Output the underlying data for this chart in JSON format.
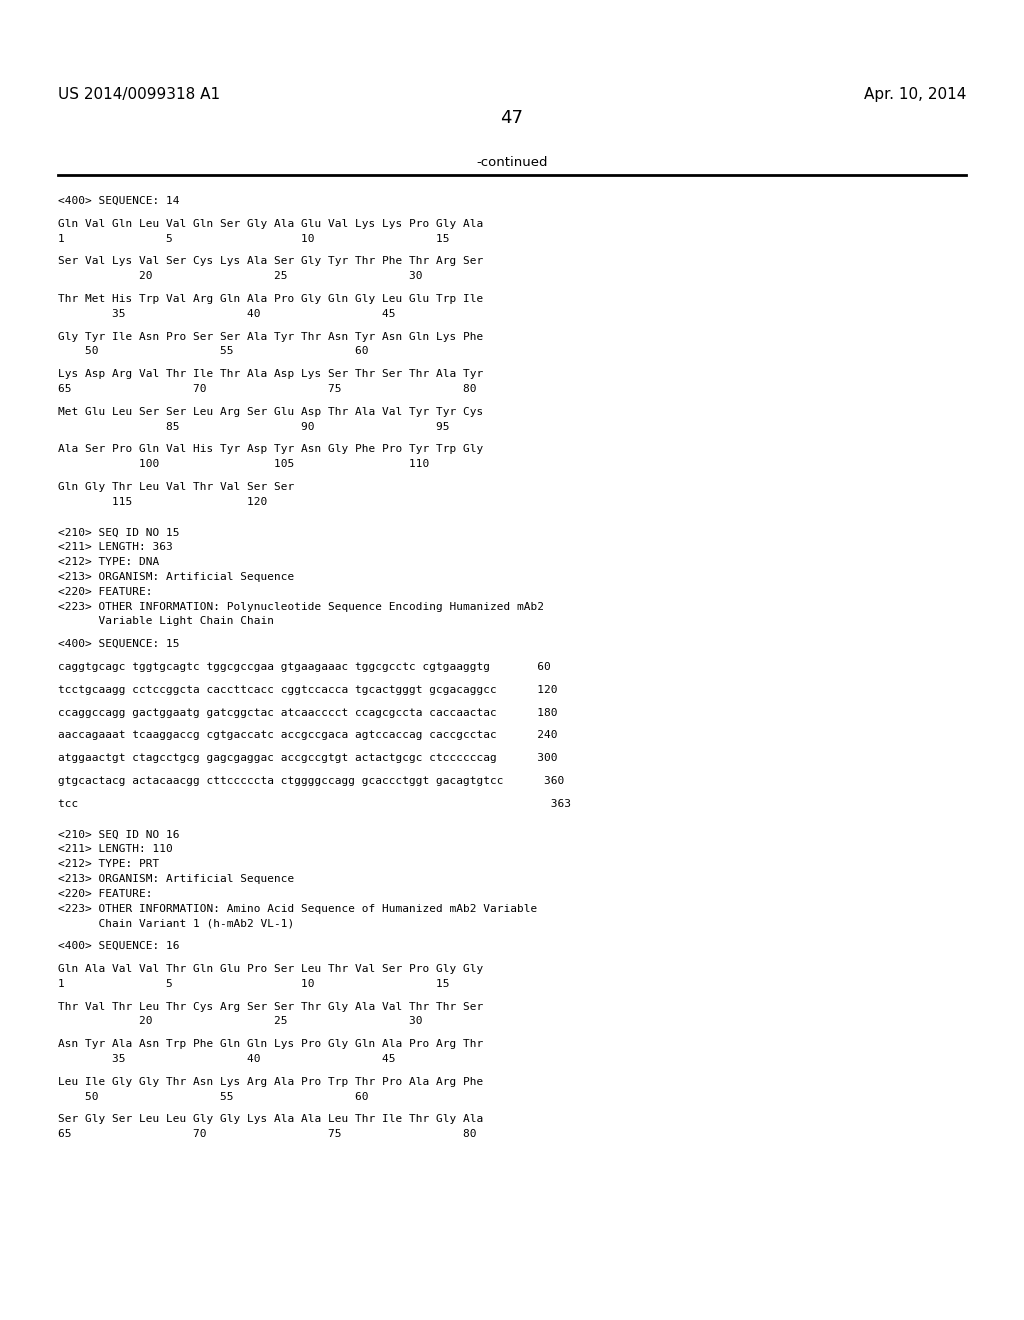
{
  "header_left": "US 2014/0099318 A1",
  "header_right": "Apr. 10, 2014",
  "page_number": "47",
  "continued_text": "-continued",
  "background_color": "#ffffff",
  "text_color": "#000000",
  "lines": [
    "<400> SEQUENCE: 14",
    "",
    "Gln Val Gln Leu Val Gln Ser Gly Ala Glu Val Lys Lys Pro Gly Ala",
    "1               5                   10                  15",
    "",
    "Ser Val Lys Val Ser Cys Lys Ala Ser Gly Tyr Thr Phe Thr Arg Ser",
    "            20                  25                  30",
    "",
    "Thr Met His Trp Val Arg Gln Ala Pro Gly Gln Gly Leu Glu Trp Ile",
    "        35                  40                  45",
    "",
    "Gly Tyr Ile Asn Pro Ser Ser Ala Tyr Thr Asn Tyr Asn Gln Lys Phe",
    "    50                  55                  60",
    "",
    "Lys Asp Arg Val Thr Ile Thr Ala Asp Lys Ser Thr Ser Thr Ala Tyr",
    "65                  70                  75                  80",
    "",
    "Met Glu Leu Ser Ser Leu Arg Ser Glu Asp Thr Ala Val Tyr Tyr Cys",
    "                85                  90                  95",
    "",
    "Ala Ser Pro Gln Val His Tyr Asp Tyr Asn Gly Phe Pro Tyr Trp Gly",
    "            100                 105                 110",
    "",
    "Gln Gly Thr Leu Val Thr Val Ser Ser",
    "        115                 120",
    "",
    "",
    "<210> SEQ ID NO 15",
    "<211> LENGTH: 363",
    "<212> TYPE: DNA",
    "<213> ORGANISM: Artificial Sequence",
    "<220> FEATURE:",
    "<223> OTHER INFORMATION: Polynucleotide Sequence Encoding Humanized mAb2",
    "      Variable Light Chain Chain",
    "",
    "<400> SEQUENCE: 15",
    "",
    "caggtgcagc tggtgcagtc tggcgccgaa gtgaagaaac tggcgcctc cgtgaaggtg       60",
    "",
    "tcctgcaagg cctccggcta caccttcacc cggtccacca tgcactgggt gcgacaggcc      120",
    "",
    "ccaggccagg gactggaatg gatcggctac atcaacccct ccagcgccta caccaactac      180",
    "",
    "aaccagaaat tcaaggaccg cgtgaccatc accgccgaca agtccaccag caccgcctac      240",
    "",
    "atggaactgt ctagcctgcg gagcgaggac accgccgtgt actactgcgc ctccccccag      300",
    "",
    "gtgcactacg actacaacgg cttcccccta ctggggccagg gcaccctggt gacagtgtcc      360",
    "",
    "tcc                                                                      363",
    "",
    "",
    "<210> SEQ ID NO 16",
    "<211> LENGTH: 110",
    "<212> TYPE: PRT",
    "<213> ORGANISM: Artificial Sequence",
    "<220> FEATURE:",
    "<223> OTHER INFORMATION: Amino Acid Sequence of Humanized mAb2 Variable",
    "      Chain Variant 1 (h-mAb2 VL-1)",
    "",
    "<400> SEQUENCE: 16",
    "",
    "Gln Ala Val Val Thr Gln Glu Pro Ser Leu Thr Val Ser Pro Gly Gly",
    "1               5                   10                  15",
    "",
    "Thr Val Thr Leu Thr Cys Arg Ser Ser Thr Gly Ala Val Thr Thr Ser",
    "            20                  25                  30",
    "",
    "Asn Tyr Ala Asn Trp Phe Gln Gln Lys Pro Gly Gln Ala Pro Arg Thr",
    "        35                  40                  45",
    "",
    "Leu Ile Gly Gly Thr Asn Lys Arg Ala Pro Trp Thr Pro Ala Arg Phe",
    "    50                  55                  60",
    "",
    "Ser Gly Ser Leu Leu Gly Gly Lys Ala Ala Leu Thr Ile Thr Gly Ala",
    "65                  70                  75                  80"
  ]
}
